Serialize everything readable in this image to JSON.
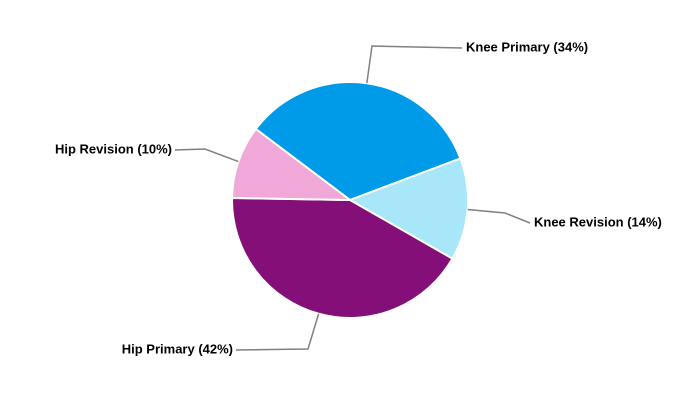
{
  "chart_data": {
    "type": "pie",
    "categories": [
      "Knee Primary (34%)",
      "Knee Revision (14%)",
      "Hip Primary (42%)",
      "Hip Revision (10%)"
    ],
    "values": [
      34,
      14,
      42,
      10
    ],
    "colors": [
      "#009be8",
      "#a8e6fa",
      "#850f78",
      "#f0a8d8"
    ]
  }
}
